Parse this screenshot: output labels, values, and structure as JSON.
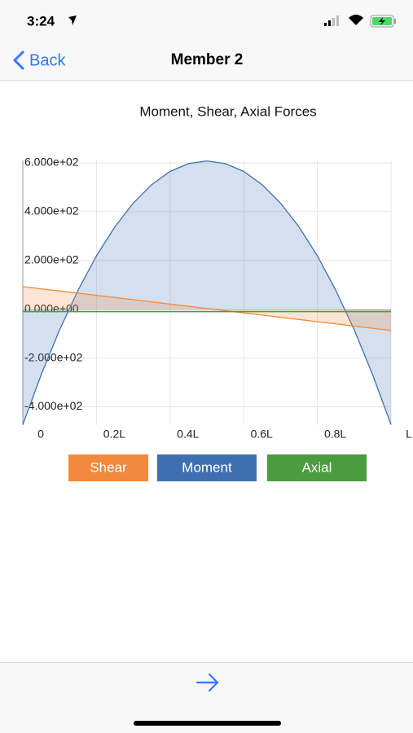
{
  "status_bar": {
    "time": "3:24"
  },
  "nav": {
    "back": "Back",
    "title": "Member 2"
  },
  "chart_data": {
    "type": "area",
    "title": "Moment, Shear, Axial Forces",
    "x": [
      0,
      0.05,
      0.1,
      0.15,
      0.2,
      0.25,
      0.3,
      0.35,
      0.4,
      0.45,
      0.5,
      0.55,
      0.6,
      0.65,
      0.7,
      0.75,
      0.8,
      0.85,
      0.9,
      0.95,
      1
    ],
    "xlim": [
      0,
      1
    ],
    "xticks": [
      0,
      {
        "value": 0.2,
        "label": "0.2L"
      },
      {
        "value": 0.4,
        "label": "0.4L"
      },
      {
        "value": 0.6,
        "label": "0.6L"
      },
      {
        "value": 0.8,
        "label": "0.8L"
      },
      {
        "value": 1,
        "label": "L"
      }
    ],
    "ylim": [
      -475,
      610
    ],
    "yticks": [
      {
        "value": 600,
        "label": "6.000e+02"
      },
      {
        "value": 400,
        "label": "4.000e+02"
      },
      {
        "value": 200,
        "label": "2.000e+02"
      },
      {
        "value": 0,
        "label": "0.000e+00"
      },
      {
        "value": -200,
        "label": "-2.000e+02"
      },
      {
        "value": -400,
        "label": "-4.000e+02"
      }
    ],
    "grid": true,
    "series": [
      {
        "name": "Shear",
        "color": "#f0893b",
        "values": [
          93,
          84,
          75,
          66,
          57,
          48,
          39,
          30,
          21,
          12,
          3,
          -6,
          -15,
          -24,
          -33,
          -42,
          -51,
          -60,
          -69,
          -78,
          -87
        ]
      },
      {
        "name": "Moment",
        "color": "#3e70b1",
        "values": [
          -473,
          -268,
          -84,
          78,
          219,
          338,
          435,
          511,
          565,
          597,
          608,
          597,
          565,
          511,
          435,
          338,
          219,
          78,
          -84,
          -268,
          -473
        ]
      },
      {
        "name": "Axial",
        "color": "#4b9b3f",
        "values": [
          -10,
          -10,
          -10,
          -10,
          -10,
          -10,
          -10,
          -10,
          -10,
          -10,
          -10,
          -10,
          -10,
          -10,
          -10,
          -10,
          -10,
          -10,
          -10,
          -10,
          -10
        ]
      }
    ]
  }
}
